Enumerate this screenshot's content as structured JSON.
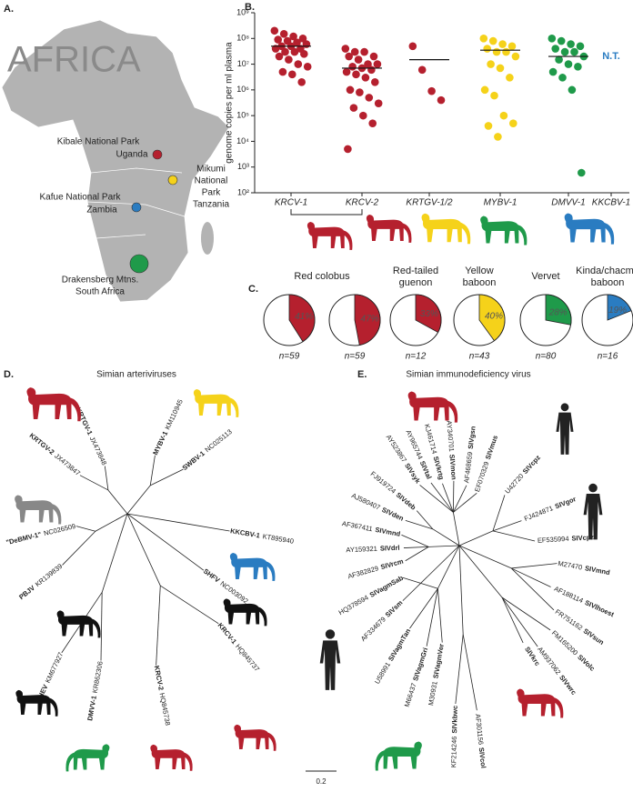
{
  "panel_a": {
    "label": "A.",
    "title": "AFRICA",
    "sites": [
      {
        "lines": [
          "Kibale National Park",
          "Uganda"
        ],
        "color": "#b5202e"
      },
      {
        "lines": [
          "Mikumi",
          "National",
          "Park",
          "Tanzania"
        ],
        "color": "#f5d21a"
      },
      {
        "lines": [
          "Kafue National Park",
          "Zambia"
        ],
        "color": "#2a7cc1"
      },
      {
        "lines": [
          "Drakensberg Mtns.",
          "South Africa"
        ],
        "color": "#1f9a4a"
      }
    ]
  },
  "chart_data": [
    {
      "type": "strip",
      "panel_label": "B.",
      "y_label": "genome copies per ml plasma",
      "categories": [
        "KRCV-1",
        "KRCV-2",
        "KRTGV-1/2",
        "MYBV-1",
        "DMVV-1",
        "KKCBV-1"
      ],
      "colors": [
        "#b5202e",
        "#b5202e",
        "#b5202e",
        "#f5d21a",
        "#1f9a4a",
        "#2a7cc1"
      ],
      "values": [
        [
          200000000,
          150000000,
          120000000,
          100000000,
          90000000,
          80000000,
          70000000,
          60000000,
          50000000,
          50000000,
          40000000,
          40000000,
          30000000,
          30000000,
          25000000,
          20000000,
          15000000,
          10000000,
          8000000,
          5000000,
          4000000,
          2000000
        ],
        [
          40000000,
          30000000,
          30000000,
          20000000,
          20000000,
          15000000,
          10000000,
          10000000,
          8000000,
          7000000,
          6000000,
          5000000,
          4000000,
          3000000,
          2000000,
          1000000,
          800000,
          500000,
          300000,
          200000,
          100000,
          50000,
          5000
        ],
        [
          50000000,
          6000000,
          900000,
          400000
        ],
        [
          100000000,
          80000000,
          60000000,
          50000000,
          40000000,
          30000000,
          30000000,
          20000000,
          10000000,
          7000000,
          3000000,
          1000000,
          600000,
          100000,
          50000,
          40000,
          15000
        ],
        [
          100000000,
          80000000,
          60000000,
          50000000,
          40000000,
          30000000,
          30000000,
          20000000,
          15000000,
          10000000,
          8000000,
          5000000,
          3000000,
          1000000,
          600
        ],
        []
      ],
      "means": [
        50000000,
        7000000,
        15000000,
        35000000,
        20000000,
        null
      ],
      "annotation": "N.T.",
      "log_scale": true,
      "ylim": [
        100,
        1000000000
      ],
      "yticks": [
        {
          "value": 100,
          "label": "10²"
        },
        {
          "value": 1000,
          "label": "10³"
        },
        {
          "value": 10000,
          "label": "10⁴"
        },
        {
          "value": 100000,
          "label": "10⁵"
        },
        {
          "value": 1000000,
          "label": "10⁶"
        },
        {
          "value": 10000000,
          "label": "10⁷"
        },
        {
          "value": 100000000,
          "label": "10⁸"
        },
        {
          "value": 1000000000,
          "label": "10⁹"
        }
      ]
    },
    {
      "type": "pie",
      "panel_label": "C.",
      "species": [
        [
          "Red colobus"
        ],
        [
          "Red-tailed",
          "guenon"
        ],
        [
          "Yellow",
          "baboon"
        ],
        [
          "Vervet"
        ],
        [
          "Kinda/chacma",
          "baboon"
        ]
      ],
      "categories": [
        "n=59",
        "n=59",
        "n=12",
        "n=43",
        "n=80",
        "n=16"
      ],
      "values": [
        41,
        47,
        33,
        40,
        28,
        19
      ],
      "value_labels": [
        "41%",
        "47%",
        "33%",
        "40%",
        "28%",
        "19%"
      ],
      "colors": [
        "#b5202e",
        "#b5202e",
        "#b5202e",
        "#f5d21a",
        "#1f9a4a",
        "#2a7cc1"
      ]
    }
  ],
  "panel_d": {
    "label": "D.",
    "title": "Simian arteriviruses",
    "leaves": [
      {
        "name": "KRTGV-1",
        "accession": "JX473848"
      },
      {
        "name": "KRTGV-2",
        "accession": "JX473847"
      },
      {
        "name": "\"DeBMV-1\"",
        "accession": "NC026509"
      },
      {
        "name": "PBJV",
        "accession": "KR139839"
      },
      {
        "name": "SHEV",
        "accession": "KM677927"
      },
      {
        "name": "DMVV-1",
        "accession": "KR862306"
      },
      {
        "name": "KRCV-2",
        "accession": "HQ845738"
      },
      {
        "name": "KRCV-1",
        "accession": "HQ845737"
      },
      {
        "name": "SHFV",
        "accession": "NC003092"
      },
      {
        "name": "KKCBV-1",
        "accession": "KT895940"
      },
      {
        "name": "SWBV-1",
        "accession": "NC025113"
      },
      {
        "name": "MYBV-1",
        "accession": "KM110945"
      }
    ]
  },
  "panel_e": {
    "label": "E.",
    "title": "Simian immunodeficiency virus",
    "scale": "0.2",
    "leaves": [
      {
        "accession": "AY523867",
        "name": "SIVsyk"
      },
      {
        "accession": "AY965744",
        "name": "SIVtal"
      },
      {
        "accession": "KJ461714",
        "name": "SIVkrtg"
      },
      {
        "accession": "AY340701",
        "name": "SIVmon"
      },
      {
        "accession": "AF468659",
        "name": "SIVgsn"
      },
      {
        "accession": "EF070329",
        "name": "SIVmus"
      },
      {
        "accession": "FJ919724",
        "name": "SIVdeb"
      },
      {
        "accession": "AJ580407",
        "name": "SIVden"
      },
      {
        "accession": "AF367411",
        "name": "SIVmnd"
      },
      {
        "accession": "AY159321",
        "name": "SIVdrl"
      },
      {
        "accession": "AF382829",
        "name": "SIVrcm"
      },
      {
        "accession": "HQ378594",
        "name": "SIVagmSab"
      },
      {
        "accession": "AF334679",
        "name": "SIVsm"
      },
      {
        "accession": "U58991",
        "name": "SIVagmTan"
      },
      {
        "accession": "M66437",
        "name": "SIVagmGri"
      },
      {
        "accession": "M30931",
        "name": "SIVagmVer"
      },
      {
        "accession": "U42720",
        "name": "SIVcpz"
      },
      {
        "accession": "FJ424871",
        "name": "SIVgor"
      },
      {
        "accession": "EF535994",
        "name": "SIVcpz"
      },
      {
        "accession": "M27470",
        "name": "SIVmnd"
      },
      {
        "accession": "AF188114",
        "name": "SIVlhoest"
      },
      {
        "accession": "FR751162",
        "name": "SIVsun"
      },
      {
        "accession": "FM165200",
        "name": "SIVolc"
      },
      {
        "accession": "AM937062",
        "name": "SIVwrc"
      },
      {
        "name": "SIVkrc"
      },
      {
        "accession": "KF214246",
        "name": "SIVkbwc"
      },
      {
        "accession": "AF301156",
        "name": "SIVcol"
      }
    ]
  }
}
